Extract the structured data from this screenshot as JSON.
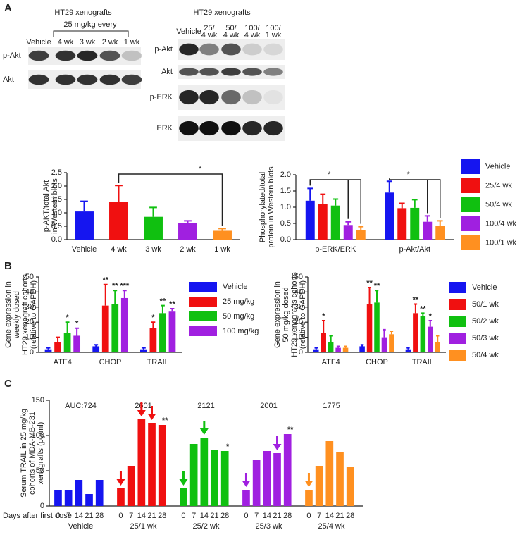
{
  "panels": [
    "A",
    "B",
    "C"
  ],
  "blots": {
    "left": {
      "title": "HT29 xenografts",
      "subtitle": "25 mg/kg every",
      "lanes": [
        "Vehicle",
        "4 wk",
        "3 wk",
        "2 wk",
        "1 wk"
      ],
      "rows": [
        "p-Akt",
        "Akt"
      ]
    },
    "right": {
      "title": "HT29 xenografts",
      "lanes": [
        [
          "Vehicle"
        ],
        [
          "25/",
          "4 wk"
        ],
        [
          "50/",
          "4 wk"
        ],
        [
          "100/",
          "4 wk"
        ],
        [
          "100/",
          "1 wk"
        ]
      ],
      "rows": [
        "p-Akt",
        "Akt",
        "p-ERK",
        "ERK"
      ]
    }
  },
  "chart_data": [
    {
      "type": "bar",
      "y_label": [
        "p-AKT/total Akt",
        "in Western blots"
      ],
      "categories": [
        "Vehicle",
        "4 wk",
        "3 wk",
        "2 wk",
        "1 wk"
      ],
      "values": [
        1.05,
        1.4,
        0.85,
        0.62,
        0.33
      ],
      "errors": [
        0.38,
        0.62,
        0.35,
        0.08,
        0.08
      ],
      "colors": [
        "#1515f0",
        "#f01010",
        "#10c010",
        "#a020e0",
        "#ff9020"
      ],
      "ylim": [
        0,
        2.5
      ],
      "yticks": [
        {
          "value": 0,
          "label": "0.0"
        },
        0.5,
        {
          "value": 1,
          "label": "1.0"
        },
        1.5,
        {
          "value": 2,
          "label": "2.0"
        },
        2.5
      ],
      "annotations": [
        "*"
      ]
    },
    {
      "type": "bar",
      "y_label": [
        "Phosphorylated/total",
        "protein in Western blots"
      ],
      "categories": [
        "p-ERK/ERK",
        "p-Akt/Akt"
      ],
      "series": [
        {
          "name": "Vehicle",
          "color": "#1515f0",
          "values": [
            1.2,
            1.45
          ],
          "errors": [
            0.38,
            0.35
          ]
        },
        {
          "name": "25/4 wk",
          "color": "#f01010",
          "values": [
            1.1,
            0.97
          ],
          "errors": [
            0.3,
            0.15
          ]
        },
        {
          "name": "50/4 wk",
          "color": "#10c010",
          "values": [
            1.05,
            0.98
          ],
          "errors": [
            0.2,
            0.25
          ]
        },
        {
          "name": "100/4 wk",
          "color": "#a020e0",
          "values": [
            0.45,
            0.55
          ],
          "errors": [
            0.1,
            0.18
          ]
        },
        {
          "name": "100/1 wk",
          "color": "#ff9020",
          "values": [
            0.3,
            0.43
          ],
          "errors": [
            0.1,
            0.15
          ]
        }
      ],
      "ylim": [
        0,
        2
      ],
      "yticks": [
        {
          "value": 0,
          "label": "0.0"
        },
        0.5,
        {
          "value": 1,
          "label": "1.0"
        },
        1.5,
        {
          "value": 2,
          "label": "2.0"
        }
      ],
      "annotations": [
        "*",
        "*"
      ]
    },
    {
      "type": "bar",
      "y_label": [
        "Gene expression in",
        "weekly dosed",
        "HT29 xenograft cohorts",
        "(relative to GAPDH)"
      ],
      "categories": [
        "ATF4",
        "CHOP",
        "TRAIL"
      ],
      "series": [
        {
          "name": "Vehicle",
          "color": "#1515f0",
          "values": [
            2,
            4,
            2
          ],
          "errors": [
            1,
            1,
            1
          ],
          "significance": [
            null,
            null,
            null
          ]
        },
        {
          "name": "25 mg/kg",
          "color": "#f01010",
          "values": [
            7,
            31,
            16
          ],
          "errors": [
            3,
            14,
            4
          ],
          "significance": [
            null,
            "**",
            "*"
          ]
        },
        {
          "name": "50 mg/kg",
          "color": "#10c010",
          "values": [
            13,
            32,
            26
          ],
          "errors": [
            7,
            9,
            5
          ],
          "significance": [
            "*",
            "**",
            "**"
          ]
        },
        {
          "name": "100 mg/kg",
          "color": "#a020e0",
          "values": [
            11,
            36,
            27
          ],
          "errors": [
            5,
            5,
            2
          ],
          "significance": [
            "*",
            "***",
            "**"
          ]
        }
      ],
      "ylim": [
        0,
        50
      ],
      "yticks": [
        0,
        10,
        20,
        30,
        40,
        50
      ]
    },
    {
      "type": "bar",
      "y_label": [
        "Gene expression in",
        "50 mg/kg dosed",
        "HT29 xenografts cohorts",
        "(relative to GAPDH)"
      ],
      "categories": [
        "ATF4",
        "CHOP",
        "TRAIL"
      ],
      "series": [
        {
          "name": "Vehicle",
          "color": "#1515f0",
          "values": [
            2,
            4,
            2
          ],
          "errors": [
            1,
            1,
            1
          ],
          "significance": [
            null,
            null,
            null
          ]
        },
        {
          "name": "50/1 wk",
          "color": "#f01010",
          "values": [
            13,
            32,
            26
          ],
          "errors": [
            8,
            11,
            6
          ],
          "significance": [
            "*",
            "**",
            "**"
          ]
        },
        {
          "name": "50/2 wk",
          "color": "#10c010",
          "values": [
            7,
            33,
            24
          ],
          "errors": [
            4,
            8,
            2
          ],
          "significance": [
            null,
            "**",
            "**"
          ]
        },
        {
          "name": "50/3 wk",
          "color": "#a020e0",
          "values": [
            3,
            10,
            17
          ],
          "errors": [
            1,
            5,
            4
          ],
          "significance": [
            null,
            null,
            "*"
          ]
        },
        {
          "name": "50/4 wk",
          "color": "#ff9020",
          "values": [
            3,
            12,
            7
          ],
          "errors": [
            1,
            2,
            4
          ],
          "significance": [
            null,
            null,
            null
          ]
        }
      ],
      "ylim": [
        0,
        50
      ],
      "yticks": [
        0,
        10,
        20,
        30,
        40,
        50
      ]
    },
    {
      "type": "grouped-days",
      "y_label": [
        "Serum TRAIL in 25 mg/kg",
        "cohorts of MDA-MB-231",
        "xenografts (pg/ml)"
      ],
      "x_label": "Days after first dose",
      "days": [
        "0",
        "7",
        "14",
        "21",
        "28"
      ],
      "groups": [
        {
          "name": "Vehicle",
          "auc": "AUC:724",
          "color": "#1515f0",
          "values": [
            22,
            22,
            37,
            17,
            37
          ],
          "significance": [
            null,
            null,
            null,
            null,
            null
          ]
        },
        {
          "name": "25/1 wk",
          "auc": "2601",
          "color": "#f01010",
          "values": [
            25,
            57,
            123,
            118,
            115
          ],
          "significance": [
            null,
            null,
            null,
            null,
            "**"
          ]
        },
        {
          "name": "25/2 wk",
          "auc": "2121",
          "color": "#10c010",
          "values": [
            25,
            88,
            97,
            80,
            78
          ],
          "significance": [
            null,
            null,
            null,
            null,
            "*"
          ]
        },
        {
          "name": "25/3 wk",
          "auc": "2001",
          "color": "#a020e0",
          "values": [
            23,
            65,
            78,
            75,
            102
          ],
          "significance": [
            null,
            null,
            null,
            null,
            "**"
          ]
        },
        {
          "name": "25/4 wk",
          "auc": "1775",
          "color": "#ff9020",
          "values": [
            23,
            57,
            92,
            77,
            55
          ],
          "significance": [
            null,
            null,
            null,
            null,
            null
          ]
        }
      ],
      "ylim": [
        0,
        150
      ],
      "yticks": [
        0,
        50,
        100,
        150
      ]
    }
  ]
}
